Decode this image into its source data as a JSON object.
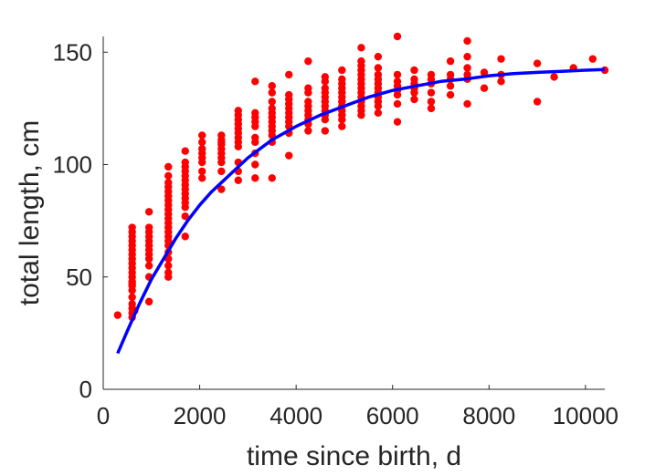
{
  "chart_data": {
    "type": "scatter",
    "xlabel": "time since birth, d",
    "ylabel": "total length, cm",
    "xlim": [
      0,
      10400
    ],
    "ylim": [
      0,
      157
    ],
    "xticks": [
      0,
      2000,
      4000,
      6000,
      8000,
      10000
    ],
    "yticks": [
      0,
      50,
      100,
      150
    ],
    "grid": false,
    "colors": {
      "points": "#ff0000",
      "curve": "#0000ff"
    },
    "series": [
      {
        "type": "scatter",
        "x": [
          300,
          600,
          600,
          600,
          600,
          600,
          600,
          600,
          600,
          600,
          600,
          600,
          600,
          600,
          600,
          600,
          600,
          600,
          600,
          600,
          600,
          600,
          650,
          950,
          950,
          950,
          950,
          950,
          950,
          950,
          950,
          950,
          950,
          950,
          950,
          1350,
          1350,
          1350,
          1350,
          1350,
          1350,
          1350,
          1350,
          1350,
          1350,
          1350,
          1350,
          1350,
          1350,
          1350,
          1350,
          1350,
          1350,
          1350,
          1350,
          1350,
          1350,
          1700,
          1700,
          1700,
          1700,
          1700,
          1700,
          1700,
          1700,
          1700,
          1700,
          1700,
          1700,
          1700,
          1700,
          2050,
          2050,
          2050,
          2050,
          2050,
          2050,
          2050,
          2050,
          2450,
          2450,
          2450,
          2450,
          2450,
          2450,
          2450,
          2450,
          2450,
          2450,
          2800,
          2800,
          2800,
          2800,
          2800,
          2800,
          2800,
          2800,
          2800,
          2800,
          2800,
          2800,
          3150,
          3150,
          3150,
          3150,
          3150,
          3150,
          3150,
          3150,
          3150,
          3150,
          3500,
          3500,
          3500,
          3500,
          3500,
          3500,
          3500,
          3500,
          3500,
          3500,
          3500,
          3500,
          3850,
          3850,
          3850,
          3850,
          3850,
          3850,
          3850,
          3850,
          3850,
          3850,
          3850,
          4250,
          4250,
          4250,
          4250,
          4250,
          4250,
          4250,
          4250,
          4250,
          4250,
          4600,
          4600,
          4600,
          4600,
          4600,
          4600,
          4600,
          4600,
          4600,
          4600,
          4600,
          4950,
          4950,
          4950,
          4950,
          4950,
          4950,
          4950,
          4950,
          4950,
          4950,
          4950,
          4950,
          5350,
          5350,
          5350,
          5350,
          5350,
          5350,
          5350,
          5350,
          5350,
          5350,
          5350,
          5350,
          5350,
          5350,
          5700,
          5700,
          5700,
          5700,
          5700,
          5700,
          5700,
          5700,
          5700,
          5700,
          5700,
          6100,
          6100,
          6100,
          6100,
          6100,
          6100,
          6100,
          6100,
          6450,
          6450,
          6450,
          6450,
          6450,
          6450,
          6800,
          6800,
          6800,
          6800,
          6800,
          6800,
          7200,
          7200,
          7200,
          7200,
          7200,
          7550,
          7550,
          7550,
          7550,
          7550,
          7550,
          7900,
          7900,
          8250,
          8250,
          8250,
          9000,
          9000,
          9350,
          9750,
          10150,
          10400
        ],
        "y": [
          33,
          32,
          34,
          36,
          38,
          41,
          44,
          46,
          48,
          50,
          52,
          54,
          56,
          58,
          60,
          62,
          64,
          66,
          68,
          70,
          72,
          47,
          35,
          39,
          50,
          55,
          58,
          60,
          62,
          64,
          66,
          68,
          70,
          72,
          79,
          50,
          52,
          55,
          58,
          61,
          64,
          66,
          68,
          70,
          72,
          74,
          76,
          78,
          80,
          82,
          84,
          86,
          88,
          90,
          92,
          95,
          99,
          68,
          77,
          81,
          83,
          85,
          87,
          89,
          91,
          93,
          95,
          97,
          99,
          101,
          106,
          94,
          97,
          101,
          103,
          105,
          107,
          110,
          113,
          89,
          97,
          101,
          103,
          105,
          107,
          109,
          111,
          113,
          110,
          93,
          97,
          101,
          108,
          110,
          112,
          114,
          116,
          118,
          120,
          122,
          124,
          94,
          100,
          105,
          110,
          112,
          117,
          119,
          121,
          123,
          137,
          94,
          110,
          113,
          115,
          117,
          119,
          121,
          123,
          125,
          128,
          132,
          135,
          104,
          114,
          117,
          119,
          121,
          123,
          125,
          127,
          129,
          131,
          140,
          115,
          118,
          120,
          122,
          124,
          126,
          128,
          132,
          134,
          146,
          115,
          120,
          122,
          124,
          126,
          128,
          130,
          132,
          134,
          137,
          139,
          117,
          120,
          122,
          124,
          126,
          128,
          130,
          132,
          134,
          136,
          138,
          142,
          122,
          124,
          126,
          128,
          130,
          132,
          134,
          136,
          138,
          140,
          142,
          144,
          146,
          152,
          123,
          126,
          128,
          130,
          132,
          134,
          136,
          138,
          140,
          143,
          148,
          119,
          127,
          131,
          133,
          135,
          137,
          140,
          157,
          129,
          132,
          134,
          136,
          138,
          142,
          125,
          128,
          132,
          136,
          138,
          140,
          131,
          135,
          138,
          140,
          146,
          127,
          138,
          140,
          143,
          148,
          155,
          134,
          141,
          137,
          140,
          147,
          128,
          145,
          139,
          143,
          147,
          142
        ]
      },
      {
        "type": "line",
        "x": [
          300,
          500,
          750,
          1000,
          1250,
          1500,
          1750,
          2000,
          2250,
          2500,
          2750,
          3000,
          3250,
          3500,
          3750,
          4000,
          4500,
          5000,
          5500,
          6000,
          6500,
          7000,
          7500,
          8000,
          8500,
          9000,
          9500,
          10000,
          10400
        ],
        "y": [
          16,
          26,
          38,
          49,
          58,
          67,
          75,
          82,
          88,
          93,
          98,
          103,
          107,
          111,
          114,
          117,
          122,
          126,
          130,
          133,
          135,
          137,
          138,
          139.5,
          140.5,
          141,
          141.5,
          142,
          142.3
        ]
      }
    ]
  }
}
